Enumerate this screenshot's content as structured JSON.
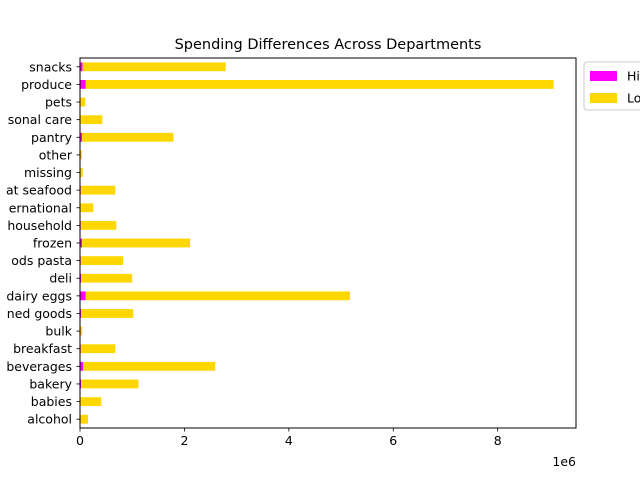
{
  "chart_data": {
    "type": "bar",
    "orientation": "horizontal",
    "stacked": true,
    "title": "Spending Differences Across Departments",
    "xlabel": "",
    "ylabel": "",
    "x_offset_text": "1e6",
    "xlim": [
      0,
      9500000
    ],
    "xticks": [
      0,
      2000000,
      4000000,
      6000000,
      8000000
    ],
    "xtick_labels": [
      "0",
      "2",
      "4",
      "6",
      "8"
    ],
    "grid": false,
    "legend_position": "upper right, outside plot",
    "categories": [
      "alcohol",
      "babies",
      "bakery",
      "beverages",
      "breakfast",
      "bulk",
      "canned goods",
      "dairy eggs",
      "deli",
      "dry goods pasta",
      "frozen",
      "household",
      "international",
      "meat seafood",
      "missing",
      "other",
      "pantry",
      "personal care",
      "pets",
      "produce",
      "snacks"
    ],
    "category_labels_visible": [
      "alcohol",
      "babies",
      "bakery",
      "beverages",
      "breakfast",
      "bulk",
      "ned goods",
      "dairy eggs",
      "deli",
      "ods pasta",
      "frozen",
      "household",
      "ernational",
      "at seafood",
      "missing",
      "other",
      "pantry",
      "sonal care",
      "pets",
      "produce",
      "snacks"
    ],
    "series": [
      {
        "name": "Hi",
        "color": "#ff00ff",
        "values": [
          3000,
          8000,
          20000,
          60000,
          15000,
          2000,
          20000,
          110000,
          20000,
          15000,
          40000,
          15000,
          5000,
          15000,
          2000,
          1000,
          40000,
          8000,
          2000,
          110000,
          50000
        ]
      },
      {
        "name": "Lo",
        "color": "#ffd700",
        "values": [
          150000,
          400000,
          1100000,
          2530000,
          660000,
          40000,
          1000000,
          5060000,
          980000,
          810000,
          2070000,
          680000,
          250000,
          660000,
          50000,
          35000,
          1750000,
          420000,
          100000,
          8960000,
          2740000
        ]
      }
    ]
  }
}
